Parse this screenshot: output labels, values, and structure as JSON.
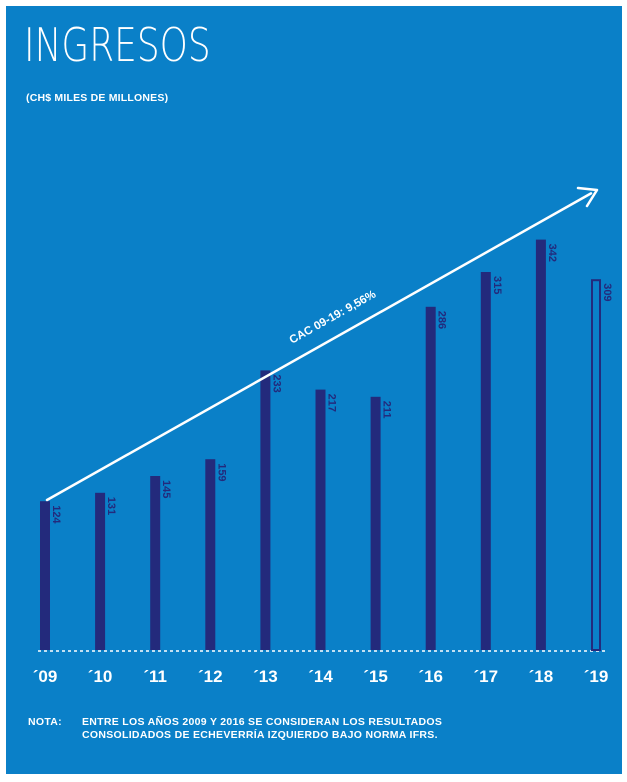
{
  "colors": {
    "background": "#0a80c8",
    "bar": "#232a7c",
    "text": "#ffffff"
  },
  "chart_data": {
    "type": "bar",
    "title": "INGRESOS",
    "subtitle": "(CH$ MILES DE MILLONES)",
    "categories": [
      "´09",
      "´10",
      "´11",
      "´12",
      "´13",
      "´14",
      "´15",
      "´16",
      "´17",
      "´18",
      "´19"
    ],
    "values": [
      124,
      131,
      145,
      159,
      233,
      217,
      211,
      286,
      315,
      342,
      309
    ],
    "outlined_bars": [
      "´19"
    ],
    "annotation": "CAC 09-19: 9,56%",
    "ylim": [
      0,
      360
    ],
    "grid": false,
    "legend": "none"
  },
  "note": {
    "label": "NOTA:",
    "lines": [
      "ENTRE LOS AÑOS 2009 Y 2016 SE CONSIDERAN LOS RESULTADOS",
      "CONSOLIDADOS DE ECHEVERRÍA IZQUIERDO BAJO NORMA IFRS."
    ]
  }
}
